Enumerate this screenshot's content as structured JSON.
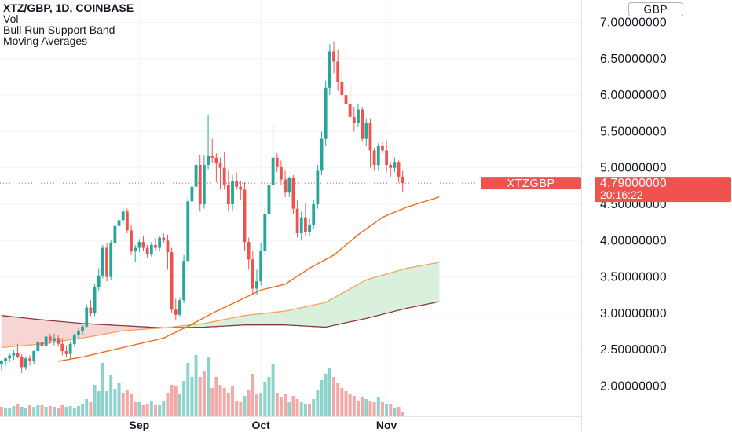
{
  "header": {
    "symbol_line": "XTZ/GBP, 1D, COINBASE",
    "indicators": [
      "Vol",
      "Bull Run Support Band",
      "Moving Averages"
    ]
  },
  "currency_badge": "GBP",
  "current_price": {
    "ticker": "XTZGBP",
    "price": "4.79000000",
    "countdown": "20:16:22",
    "value": 4.79
  },
  "colors": {
    "up": "#26a69a",
    "down": "#ef5350",
    "vol_up": "#8ed3cb",
    "vol_down": "#f4a9a7",
    "band_fill_bull": "#d8f0dc",
    "band_fill_bear": "#f8d5d5",
    "sma20": "#f5a25d",
    "ema21": "#ef8a3a",
    "ma_fast": "#f06a1a",
    "ma_slow": "#8b3a3a",
    "grid": "#f0f3fa",
    "text": "#131722",
    "price_line": "#ef5350"
  },
  "chart_data": {
    "type": "candlestick",
    "y_axis": {
      "ticks": [
        {
          "value": 2.0,
          "label": "2.00000000"
        },
        {
          "value": 2.5,
          "label": "2.50000000"
        },
        {
          "value": 3.0,
          "label": "3.00000000"
        },
        {
          "value": 3.5,
          "label": "3.50000000"
        },
        {
          "value": 4.0,
          "label": "4.00000000"
        },
        {
          "value": 4.5,
          "label": "4.50000000"
        },
        {
          "value": 5.0,
          "label": "5.00000000"
        },
        {
          "value": 5.5,
          "label": "5.50000000"
        },
        {
          "value": 6.0,
          "label": "6.00000000"
        },
        {
          "value": 6.5,
          "label": "6.50000000"
        },
        {
          "value": 7.0,
          "label": "7.00000000"
        }
      ]
    },
    "x_axis": {
      "labels": [
        {
          "label": "Sep",
          "index": 34
        },
        {
          "label": "Oct",
          "index": 64
        },
        {
          "label": "Nov",
          "index": 95
        }
      ]
    },
    "candles": [
      [
        2.3,
        2.36,
        2.22,
        2.34
      ],
      [
        2.34,
        2.4,
        2.28,
        2.38
      ],
      [
        2.38,
        2.45,
        2.33,
        2.42
      ],
      [
        2.42,
        2.5,
        2.36,
        2.45
      ],
      [
        2.45,
        2.58,
        2.38,
        2.4
      ],
      [
        2.4,
        2.44,
        2.18,
        2.26
      ],
      [
        2.26,
        2.4,
        2.22,
        2.38
      ],
      [
        2.38,
        2.42,
        2.28,
        2.35
      ],
      [
        2.35,
        2.5,
        2.3,
        2.48
      ],
      [
        2.48,
        2.62,
        2.42,
        2.6
      ],
      [
        2.6,
        2.66,
        2.5,
        2.55
      ],
      [
        2.55,
        2.7,
        2.52,
        2.68
      ],
      [
        2.68,
        2.72,
        2.58,
        2.62
      ],
      [
        2.62,
        2.72,
        2.56,
        2.66
      ],
      [
        2.66,
        2.7,
        2.54,
        2.58
      ],
      [
        2.58,
        2.66,
        2.42,
        2.48
      ],
      [
        2.48,
        2.56,
        2.4,
        2.44
      ],
      [
        2.44,
        2.6,
        2.38,
        2.58
      ],
      [
        2.58,
        2.72,
        2.54,
        2.7
      ],
      [
        2.7,
        2.8,
        2.64,
        2.76
      ],
      [
        2.76,
        2.84,
        2.7,
        2.82
      ],
      [
        2.82,
        3.12,
        2.8,
        3.08
      ],
      [
        3.08,
        3.18,
        2.96,
        3.0
      ],
      [
        3.0,
        3.4,
        2.96,
        3.36
      ],
      [
        3.36,
        3.62,
        3.3,
        3.52
      ],
      [
        3.52,
        3.94,
        3.48,
        3.9
      ],
      [
        3.9,
        3.96,
        3.44,
        3.5
      ],
      [
        3.5,
        4.0,
        3.46,
        3.96
      ],
      [
        3.96,
        4.24,
        3.92,
        4.2
      ],
      [
        4.2,
        4.34,
        4.12,
        4.28
      ],
      [
        4.28,
        4.46,
        4.22,
        4.4
      ],
      [
        4.4,
        4.44,
        4.1,
        4.14
      ],
      [
        4.14,
        4.22,
        3.8,
        3.85
      ],
      [
        3.85,
        3.94,
        3.7,
        3.9
      ],
      [
        3.9,
        4.02,
        3.84,
        3.98
      ],
      [
        3.98,
        4.06,
        3.86,
        3.9
      ],
      [
        3.9,
        3.94,
        3.76,
        3.82
      ],
      [
        3.82,
        3.98,
        3.78,
        3.94
      ],
      [
        3.94,
        4.04,
        3.86,
        3.9
      ],
      [
        3.9,
        4.06,
        3.86,
        4.04
      ],
      [
        4.04,
        4.1,
        3.96,
        4.0
      ],
      [
        4.0,
        4.08,
        3.6,
        3.84
      ],
      [
        3.84,
        3.9,
        3.0,
        3.05
      ],
      [
        3.05,
        3.2,
        2.9,
        2.98
      ],
      [
        2.98,
        3.22,
        2.96,
        3.18
      ],
      [
        3.18,
        3.8,
        3.14,
        3.72
      ],
      [
        3.72,
        4.6,
        3.7,
        4.54
      ],
      [
        4.54,
        4.8,
        4.4,
        4.74
      ],
      [
        4.74,
        5.12,
        4.6,
        5.04
      ],
      [
        5.04,
        5.18,
        4.4,
        4.5
      ],
      [
        4.5,
        5.18,
        4.44,
        5.04
      ],
      [
        5.04,
        5.72,
        4.98,
        5.16
      ],
      [
        5.16,
        5.4,
        5.06,
        5.14
      ],
      [
        5.14,
        5.2,
        4.8,
        5.06
      ],
      [
        5.06,
        5.14,
        4.7,
        5.0
      ],
      [
        5.0,
        5.22,
        4.7,
        4.76
      ],
      [
        4.76,
        4.96,
        4.4,
        4.5
      ],
      [
        4.5,
        4.9,
        4.4,
        4.82
      ],
      [
        4.82,
        4.94,
        4.7,
        4.74
      ],
      [
        4.74,
        4.82,
        4.56,
        4.7
      ],
      [
        4.7,
        4.8,
        3.86,
        3.98
      ],
      [
        3.98,
        4.04,
        3.6,
        3.74
      ],
      [
        3.74,
        3.86,
        3.26,
        3.34
      ],
      [
        3.34,
        3.6,
        3.26,
        3.44
      ],
      [
        3.44,
        3.96,
        3.38,
        3.86
      ],
      [
        3.86,
        4.46,
        3.8,
        4.36
      ],
      [
        4.36,
        4.9,
        4.3,
        4.76
      ],
      [
        4.76,
        5.6,
        4.7,
        5.14
      ],
      [
        5.14,
        5.2,
        4.94,
        5.02
      ],
      [
        5.02,
        5.1,
        4.76,
        4.84
      ],
      [
        4.84,
        4.96,
        4.6,
        4.66
      ],
      [
        4.66,
        4.88,
        4.6,
        4.86
      ],
      [
        4.86,
        4.9,
        4.36,
        4.44
      ],
      [
        4.44,
        4.56,
        4.04,
        4.1
      ],
      [
        4.1,
        4.4,
        4.0,
        4.32
      ],
      [
        4.32,
        4.52,
        4.06,
        4.12
      ],
      [
        4.12,
        4.3,
        4.06,
        4.22
      ],
      [
        4.22,
        4.56,
        4.16,
        4.5
      ],
      [
        4.5,
        5.04,
        4.44,
        4.96
      ],
      [
        4.96,
        5.5,
        4.9,
        5.4
      ],
      [
        5.4,
        6.2,
        5.3,
        6.1
      ],
      [
        6.1,
        6.7,
        6.0,
        6.6
      ],
      [
        6.6,
        6.74,
        6.3,
        6.46
      ],
      [
        6.46,
        6.62,
        6.06,
        6.18
      ],
      [
        6.18,
        6.4,
        5.94,
        6.0
      ],
      [
        6.0,
        6.1,
        5.4,
        5.88
      ],
      [
        5.88,
        6.16,
        5.7,
        5.7
      ],
      [
        5.7,
        5.84,
        5.5,
        5.62
      ],
      [
        5.62,
        5.88,
        5.56,
        5.8
      ],
      [
        5.8,
        5.84,
        5.36,
        5.4
      ],
      [
        5.4,
        5.68,
        5.3,
        5.62
      ],
      [
        5.62,
        5.68,
        5.0,
        5.24
      ],
      [
        5.24,
        5.28,
        4.96,
        5.04
      ],
      [
        5.04,
        5.34,
        4.96,
        5.3
      ],
      [
        5.3,
        5.36,
        5.2,
        5.24
      ],
      [
        5.24,
        5.38,
        4.94,
        5.04
      ],
      [
        5.04,
        5.08,
        4.88,
        5.0
      ],
      [
        5.0,
        5.14,
        4.94,
        5.08
      ],
      [
        5.08,
        5.1,
        4.8,
        4.88
      ],
      [
        4.88,
        4.96,
        4.66,
        4.79
      ]
    ],
    "volume": [
      [
        0,
        12
      ],
      [
        1,
        10
      ],
      [
        1,
        11
      ],
      [
        1,
        13
      ],
      [
        0,
        16
      ],
      [
        1,
        12
      ],
      [
        1,
        10
      ],
      [
        0,
        14
      ],
      [
        1,
        12
      ],
      [
        1,
        15
      ],
      [
        0,
        14
      ],
      [
        1,
        12
      ],
      [
        0,
        13
      ],
      [
        1,
        12
      ],
      [
        0,
        11
      ],
      [
        0,
        14
      ],
      [
        1,
        12
      ],
      [
        1,
        13
      ],
      [
        1,
        11
      ],
      [
        1,
        13
      ],
      [
        1,
        16
      ],
      [
        1,
        22
      ],
      [
        0,
        18
      ],
      [
        1,
        40
      ],
      [
        1,
        32
      ],
      [
        1,
        68
      ],
      [
        1,
        32
      ],
      [
        1,
        52
      ],
      [
        1,
        35
      ],
      [
        1,
        42
      ],
      [
        0,
        30
      ],
      [
        0,
        34
      ],
      [
        0,
        28
      ],
      [
        0,
        18
      ],
      [
        1,
        18
      ],
      [
        0,
        14
      ],
      [
        0,
        16
      ],
      [
        1,
        20
      ],
      [
        0,
        15
      ],
      [
        1,
        14
      ],
      [
        1,
        20
      ],
      [
        0,
        30
      ],
      [
        0,
        40
      ],
      [
        0,
        38
      ],
      [
        1,
        28
      ],
      [
        1,
        45
      ],
      [
        1,
        68
      ],
      [
        1,
        50
      ],
      [
        1,
        78
      ],
      [
        0,
        50
      ],
      [
        0,
        58
      ],
      [
        1,
        76
      ],
      [
        0,
        36
      ],
      [
        0,
        50
      ],
      [
        0,
        40
      ],
      [
        0,
        36
      ],
      [
        0,
        30
      ],
      [
        0,
        38
      ],
      [
        0,
        20
      ],
      [
        0,
        18
      ],
      [
        1,
        26
      ],
      [
        0,
        34
      ],
      [
        0,
        54
      ],
      [
        0,
        28
      ],
      [
        1,
        30
      ],
      [
        1,
        44
      ],
      [
        1,
        50
      ],
      [
        1,
        66
      ],
      [
        0,
        30
      ],
      [
        0,
        24
      ],
      [
        0,
        28
      ],
      [
        1,
        18
      ],
      [
        0,
        26
      ],
      [
        0,
        22
      ],
      [
        1,
        18
      ],
      [
        1,
        16
      ],
      [
        0,
        16
      ],
      [
        1,
        22
      ],
      [
        1,
        34
      ],
      [
        1,
        46
      ],
      [
        1,
        54
      ],
      [
        1,
        62
      ],
      [
        0,
        50
      ],
      [
        0,
        42
      ],
      [
        0,
        36
      ],
      [
        0,
        32
      ],
      [
        0,
        28
      ],
      [
        0,
        26
      ],
      [
        0,
        20
      ],
      [
        0,
        24
      ],
      [
        1,
        22
      ],
      [
        0,
        20
      ],
      [
        0,
        18
      ],
      [
        1,
        24
      ],
      [
        0,
        18
      ],
      [
        1,
        16
      ],
      [
        0,
        16
      ],
      [
        1,
        10
      ],
      [
        0,
        12
      ],
      [
        0,
        6
      ]
    ],
    "indicator_lines": {
      "band_sma20_weekly": [
        {
          "i": 0,
          "v": 2.53
        },
        {
          "i": 10,
          "v": 2.58
        },
        {
          "i": 20,
          "v": 2.66
        },
        {
          "i": 30,
          "v": 2.76
        },
        {
          "i": 40,
          "v": 2.8
        },
        {
          "i": 50,
          "v": 2.86
        },
        {
          "i": 60,
          "v": 2.97
        },
        {
          "i": 70,
          "v": 3.03
        },
        {
          "i": 80,
          "v": 3.15
        },
        {
          "i": 90,
          "v": 3.46
        },
        {
          "i": 100,
          "v": 3.62
        },
        {
          "i": 108,
          "v": 3.7
        }
      ],
      "band_ema21_weekly": [
        {
          "i": 0,
          "v": 2.97
        },
        {
          "i": 10,
          "v": 2.91
        },
        {
          "i": 20,
          "v": 2.86
        },
        {
          "i": 30,
          "v": 2.83
        },
        {
          "i": 40,
          "v": 2.8
        },
        {
          "i": 50,
          "v": 2.81
        },
        {
          "i": 60,
          "v": 2.84
        },
        {
          "i": 70,
          "v": 2.84
        },
        {
          "i": 80,
          "v": 2.81
        },
        {
          "i": 90,
          "v": 2.93
        },
        {
          "i": 100,
          "v": 3.07
        },
        {
          "i": 108,
          "v": 3.16
        }
      ],
      "ma_fast": [
        {
          "i": 14,
          "v": 2.34
        },
        {
          "i": 20,
          "v": 2.4
        },
        {
          "i": 30,
          "v": 2.53
        },
        {
          "i": 40,
          "v": 2.66
        },
        {
          "i": 46,
          "v": 2.82
        },
        {
          "i": 52,
          "v": 3.0
        },
        {
          "i": 58,
          "v": 3.16
        },
        {
          "i": 64,
          "v": 3.32
        },
        {
          "i": 70,
          "v": 3.4
        },
        {
          "i": 76,
          "v": 3.62
        },
        {
          "i": 82,
          "v": 3.8
        },
        {
          "i": 88,
          "v": 4.08
        },
        {
          "i": 94,
          "v": 4.32
        },
        {
          "i": 100,
          "v": 4.46
        },
        {
          "i": 108,
          "v": 4.6
        }
      ]
    }
  }
}
